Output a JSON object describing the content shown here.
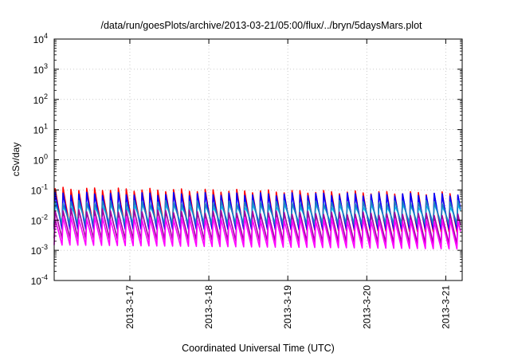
{
  "chart_data": {
    "type": "line",
    "title": "/data/run/goesPlots/archive/2013-03-21/05:00/flux/../bryn/5daysMars.plot",
    "xlabel": "Coordinated Universal Time (UTC)",
    "ylabel": "cSv/day",
    "yscale": "log",
    "ylim": [
      0.0001,
      10000
    ],
    "xlim": [
      "2013-03-16 01:00",
      "2013-03-21 05:00"
    ],
    "x_ticks": [
      "2013-3-17",
      "2013-3-18",
      "2013-3-19",
      "2013-3-20",
      "2013-3-21"
    ],
    "y_ticks": [
      {
        "base": "10",
        "exp": "4",
        "value": 10000
      },
      {
        "base": "10",
        "exp": "3",
        "value": 1000
      },
      {
        "base": "10",
        "exp": "2",
        "value": 100
      },
      {
        "base": "10",
        "exp": "1",
        "value": 10
      },
      {
        "base": "10",
        "exp": "0",
        "value": 1
      },
      {
        "base": "10",
        "exp": "-1",
        "value": 0.1
      },
      {
        "base": "10",
        "exp": "-2",
        "value": 0.01
      },
      {
        "base": "10",
        "exp": "-3",
        "value": 0.001
      },
      {
        "base": "10",
        "exp": "-4",
        "value": 0.0001
      }
    ],
    "grid": true,
    "legend": "none",
    "sawtooth_period_hours": 2.4,
    "series": [
      {
        "color": "#ff0000",
        "peak_start": 0.11,
        "peak_end": 0.075,
        "min_start": 0.006,
        "min_end": 0.004
      },
      {
        "color": "#0000ff",
        "peak_start": 0.075,
        "peak_end": 0.07,
        "min_start": 0.005,
        "min_end": 0.005
      },
      {
        "color": "#00c8ff",
        "peak_start": 0.03,
        "peak_end": 0.03,
        "min_start": 0.008,
        "min_end": 0.008
      },
      {
        "color": "#2080c0",
        "peak_start": 0.04,
        "peak_end": 0.04,
        "min_start": 0.007,
        "min_end": 0.007
      },
      {
        "color": "#a000a0",
        "peak_start": 0.022,
        "peak_end": 0.015,
        "min_start": 0.0025,
        "min_end": 0.0016
      },
      {
        "color": "#ff00ff",
        "peak_start": 0.012,
        "peak_end": 0.01,
        "min_start": 0.0015,
        "min_end": 0.0011
      }
    ]
  }
}
